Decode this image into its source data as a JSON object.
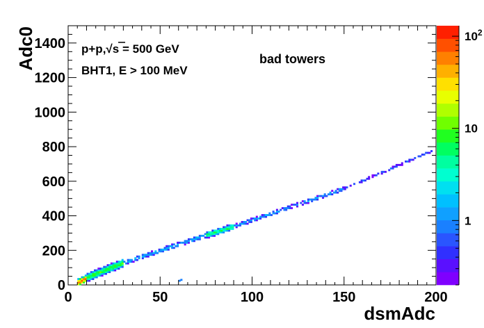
{
  "chart_data": {
    "type": "heatmap",
    "title": "",
    "xlabel": "dsmAdc",
    "ylabel": "Adc0",
    "xlim": [
      0,
      200
    ],
    "ylim": [
      0,
      1500
    ],
    "x_ticks": [
      0,
      50,
      100,
      150,
      200
    ],
    "y_ticks": [
      0,
      200,
      400,
      600,
      800,
      1000,
      1200,
      1400
    ],
    "annotations": {
      "line1_prefix": "p+p,",
      "line1_sqrt": "√",
      "line1_s": "s",
      "line1_rest": " = 500 GeV",
      "line2": "BHT1, E > 100 MeV",
      "label": "bad towers"
    },
    "colorbar": {
      "scale": "log",
      "range": [
        0.2,
        130
      ],
      "ticks": [
        {
          "label": "1",
          "value": 1
        },
        {
          "label": "10",
          "value": 10
        },
        {
          "label": "10",
          "exp": "2",
          "value": 100
        }
      ],
      "palette": [
        "#7f00ff",
        "#5a10ff",
        "#3030ff",
        "#2a55ff",
        "#1a80ff",
        "#10a0ff",
        "#00c0ff",
        "#00e0f0",
        "#00ffd0",
        "#00ffa0",
        "#00ff60",
        "#20ff20",
        "#70ff00",
        "#b0ff00",
        "#e8ff00",
        "#ffe000",
        "#ffb000",
        "#ff8000",
        "#ff5000",
        "#ff2000"
      ]
    },
    "density_segments": [
      {
        "x": [
          5,
          10
        ],
        "y_center": [
          15,
          40
        ],
        "width": 30,
        "count": 60
      },
      {
        "x": [
          10,
          30
        ],
        "y_center": [
          45,
          130
        ],
        "width": 40,
        "count": 8
      },
      {
        "x": [
          30,
          75
        ],
        "y_center": [
          130,
          290
        ],
        "width": 28,
        "count": 1.5
      },
      {
        "x": [
          75,
          90
        ],
        "y_center": [
          290,
          340
        ],
        "width": 30,
        "count": 6
      },
      {
        "x": [
          90,
          150
        ],
        "y_center": [
          340,
          560
        ],
        "width": 26,
        "count": 1.2
      },
      {
        "x": [
          150,
          198
        ],
        "y_center": [
          560,
          780
        ],
        "width": 20,
        "count": 0.6
      }
    ],
    "outlier_bins": [
      {
        "x": 60,
        "y": 20,
        "count": 0.8
      },
      {
        "x": 61,
        "y": 25,
        "count": 0.8
      }
    ]
  }
}
